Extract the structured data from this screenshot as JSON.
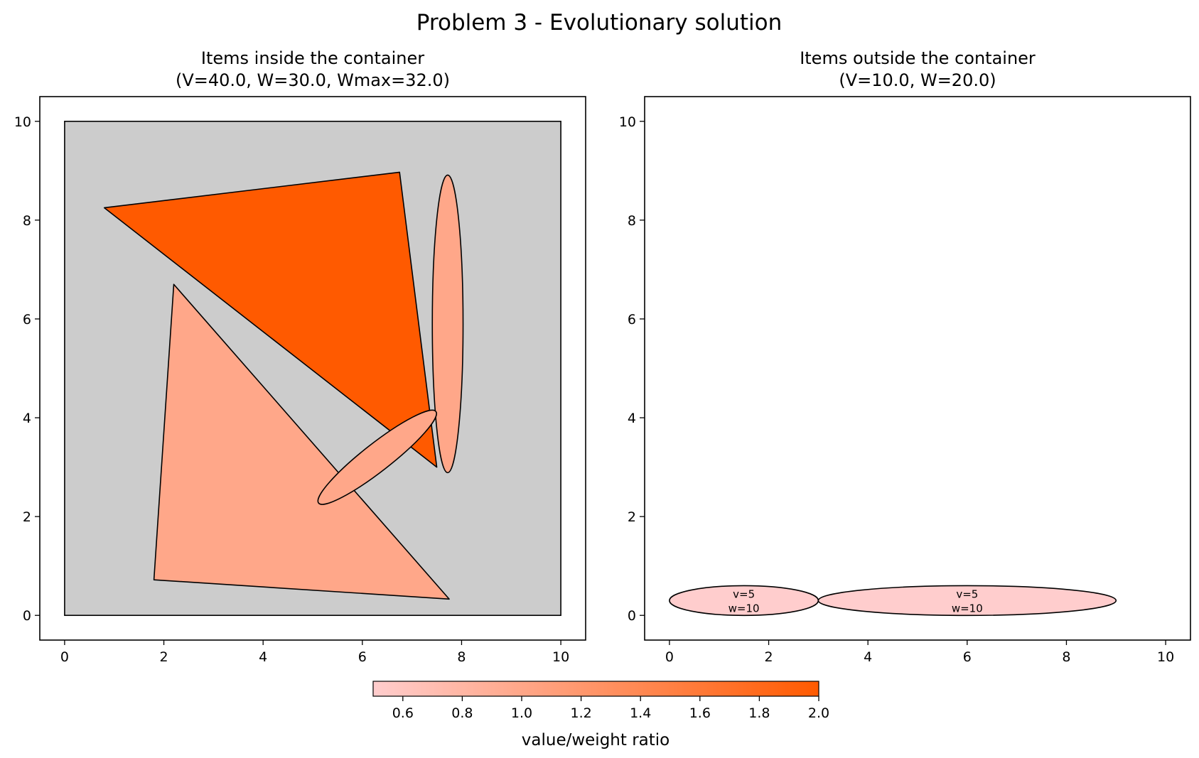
{
  "figure_title": "Problem 3 - Evolutionary solution",
  "colors": {
    "container_fill": "#cccccc",
    "edge": "#000000",
    "background": "#ffffff",
    "cmap_low": "#ffcdcd",
    "cmap_high": "#ff5a00"
  },
  "chart_data": [
    {
      "type": "shapes",
      "name": "inside",
      "title_line1": "Items inside the container",
      "title_line2": "(V=40.0, W=30.0, Wmax=32.0)",
      "xlim": [
        -0.5,
        10.5
      ],
      "ylim": [
        -0.5,
        10.5
      ],
      "xticks": [
        0,
        2,
        4,
        6,
        8,
        10
      ],
      "yticks": [
        0,
        2,
        4,
        6,
        8,
        10
      ],
      "container": {
        "x": [
          0,
          10
        ],
        "y": [
          0,
          10
        ]
      },
      "items": [
        {
          "kind": "triangle",
          "points": [
            [
              0.8,
              8.25
            ],
            [
              6.75,
              8.97
            ],
            [
              7.5,
              3.0
            ]
          ],
          "ratio": 2.0
        },
        {
          "kind": "triangle",
          "points": [
            [
              2.2,
              6.7
            ],
            [
              1.8,
              0.72
            ],
            [
              7.75,
              0.33
            ]
          ],
          "ratio": 1.0
        },
        {
          "kind": "ellipse",
          "cx": 7.72,
          "cy": 5.9,
          "rx": 0.31,
          "ry": 3.0,
          "angle": 0,
          "ratio": 1.0
        },
        {
          "kind": "ellipse",
          "cx": 6.3,
          "cy": 3.2,
          "rx": 1.5,
          "ry": 0.28,
          "angle": 38,
          "ratio": 1.0
        }
      ]
    },
    {
      "type": "shapes",
      "name": "outside",
      "title_line1": "Items outside the container",
      "title_line2": "(V=10.0, W=20.0)",
      "xlim": [
        -0.5,
        10.5
      ],
      "ylim": [
        -0.5,
        10.5
      ],
      "xticks": [
        0,
        2,
        4,
        6,
        8,
        10
      ],
      "yticks": [
        0,
        2,
        4,
        6,
        8,
        10
      ],
      "items": [
        {
          "kind": "ellipse",
          "cx": 1.5,
          "cy": 0.3,
          "rx": 1.5,
          "ry": 0.3,
          "angle": 0,
          "ratio": 0.5,
          "label_v": "v=5",
          "label_w": "w=10"
        },
        {
          "kind": "ellipse",
          "cx": 6.0,
          "cy": 0.3,
          "rx": 3.0,
          "ry": 0.3,
          "angle": 0,
          "ratio": 0.5,
          "label_v": "v=5",
          "label_w": "w=10"
        }
      ]
    }
  ],
  "colorbar": {
    "label": "value/weight ratio",
    "min": 0.5,
    "max": 2.0,
    "ticks": [
      0.6,
      0.8,
      1.0,
      1.2,
      1.4,
      1.6,
      1.8,
      2.0
    ]
  }
}
